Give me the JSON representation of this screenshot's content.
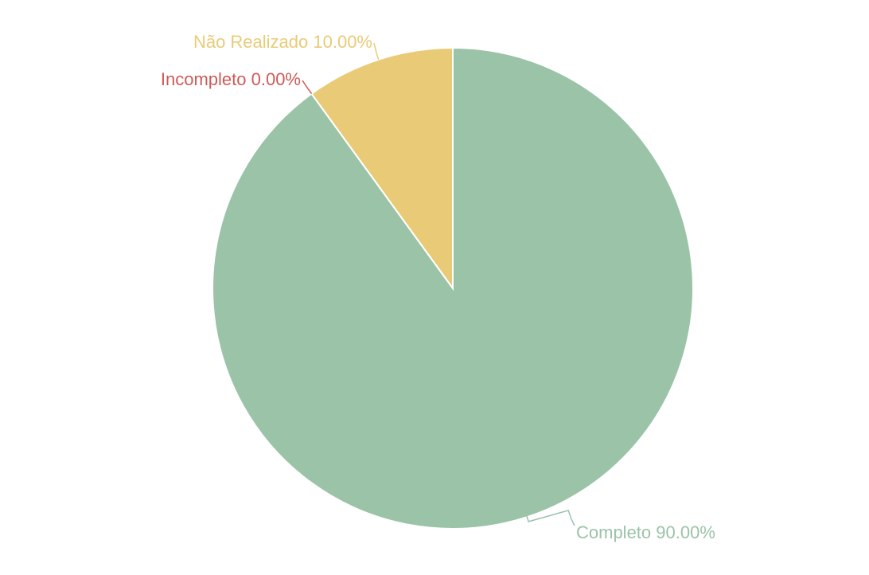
{
  "chart_data": {
    "type": "pie",
    "title": "",
    "start_angle_deg": 0,
    "direction": "clockwise",
    "slices": [
      {
        "name": "Completo",
        "value": 90.0,
        "label": "Completo 90.00%",
        "color": "#9bc3a8"
      },
      {
        "name": "Incompleto",
        "value": 0.0,
        "label": "Incompleto 0.00%",
        "color": "#cf5a5a"
      },
      {
        "name": "Não Realizado",
        "value": 10.0,
        "label": "Não Realizado 10.00%",
        "color": "#e9cb77"
      }
    ]
  }
}
